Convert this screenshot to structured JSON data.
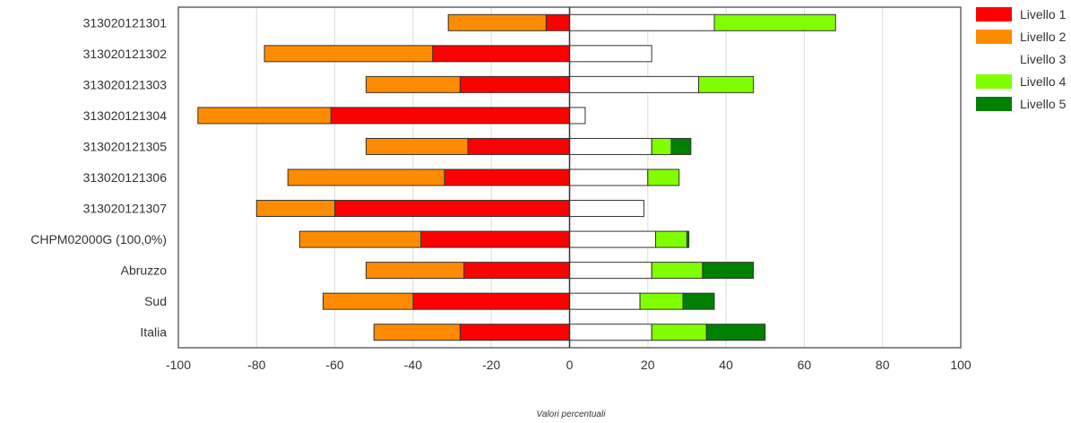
{
  "chart_data": {
    "type": "bar",
    "orientation": "horizontal",
    "stacked": "diverging",
    "categories": [
      "313020121301",
      "313020121302",
      "313020121303",
      "313020121304",
      "313020121305",
      "313020121306",
      "313020121307",
      "CHPM02000G (100,0%)",
      "Abruzzo",
      "Sud",
      "Italia"
    ],
    "series": [
      {
        "name": "Livello 1",
        "color": "#ff0000",
        "values": [
          -6,
          -35,
          -28,
          -61,
          -26,
          -32,
          -60,
          -38,
          -27,
          -40,
          -28
        ]
      },
      {
        "name": "Livello 2",
        "color": "#ff8c00",
        "values": [
          -25,
          -43,
          -24,
          -34,
          -26,
          -40,
          -20,
          -31,
          -25,
          -23,
          -22
        ]
      },
      {
        "name": "Livello 3",
        "color": "#ffffff",
        "values": [
          37,
          21,
          33,
          4,
          21,
          20,
          19,
          22,
          21,
          18,
          21
        ]
      },
      {
        "name": "Livello 4",
        "color": "#80ff00",
        "values": [
          31,
          0,
          14,
          0,
          5,
          8,
          0,
          8,
          13,
          11,
          14
        ]
      },
      {
        "name": "Livello 5",
        "color": "#008000",
        "values": [
          0,
          0,
          0,
          0,
          5,
          0,
          0,
          0.5,
          13,
          8,
          15
        ]
      }
    ],
    "xlabel": "Valori percentuali",
    "xlim": [
      -100,
      100
    ],
    "xticks": [
      -100,
      -80,
      -60,
      -40,
      -20,
      0,
      20,
      40,
      60,
      80,
      100
    ],
    "grid": true,
    "legend": "right"
  }
}
